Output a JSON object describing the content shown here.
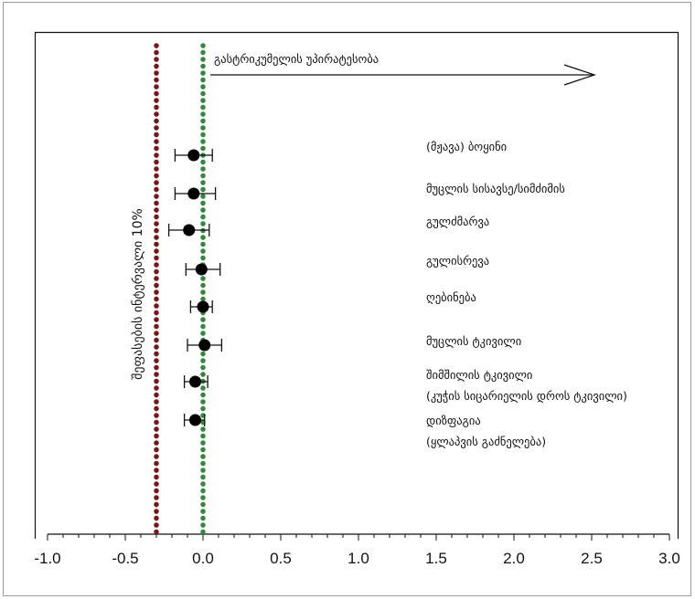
{
  "chart_data": {
    "type": "scatter",
    "title": "",
    "xlabel": "",
    "ylabel": "",
    "xlim": [
      -1.0,
      3.0
    ],
    "x_tick_labels": [
      "-1.0",
      "-0.5",
      "0.0",
      "0.5",
      "1.0",
      "1.5",
      "2.0",
      "2.5",
      "3.0"
    ],
    "grid": false,
    "legend": "none",
    "categories": [
      [
        "(მჟავა) ბოყინი"
      ],
      [
        "მუცლის სისავსე/სიმძიმის"
      ],
      [
        "გულძმარვა"
      ],
      [
        "გულისრევა"
      ],
      [
        "ღებინება"
      ],
      [
        "მუცლის ტკივილი"
      ],
      [
        "შიმშილის ტკივილი",
        "(კუჭის სიცარიელის დროს ტკივილი)"
      ],
      [
        "დიზფაგია",
        "(ყლაპვის გაძნელება)"
      ]
    ],
    "values": [
      -0.06,
      -0.06,
      -0.09,
      -0.01,
      0.0,
      0.01,
      -0.05,
      -0.05
    ],
    "ci_low": [
      -0.18,
      -0.18,
      -0.22,
      -0.11,
      -0.08,
      -0.1,
      -0.12,
      -0.12
    ],
    "ci_high": [
      0.06,
      0.08,
      0.04,
      0.11,
      0.06,
      0.12,
      0.03,
      0.01
    ],
    "marker_color": "#000000",
    "reference_lines": [
      {
        "x": -0.3,
        "color": "#7a1616",
        "style": "dotted"
      },
      {
        "x": 0.0,
        "color": "#2e8b3a",
        "style": "dotted"
      }
    ],
    "annotations": {
      "arrow_label": "გასტრიკუმელის უპირატესობა",
      "margin_label": "შეფასების ინტერვალი 10%"
    }
  }
}
